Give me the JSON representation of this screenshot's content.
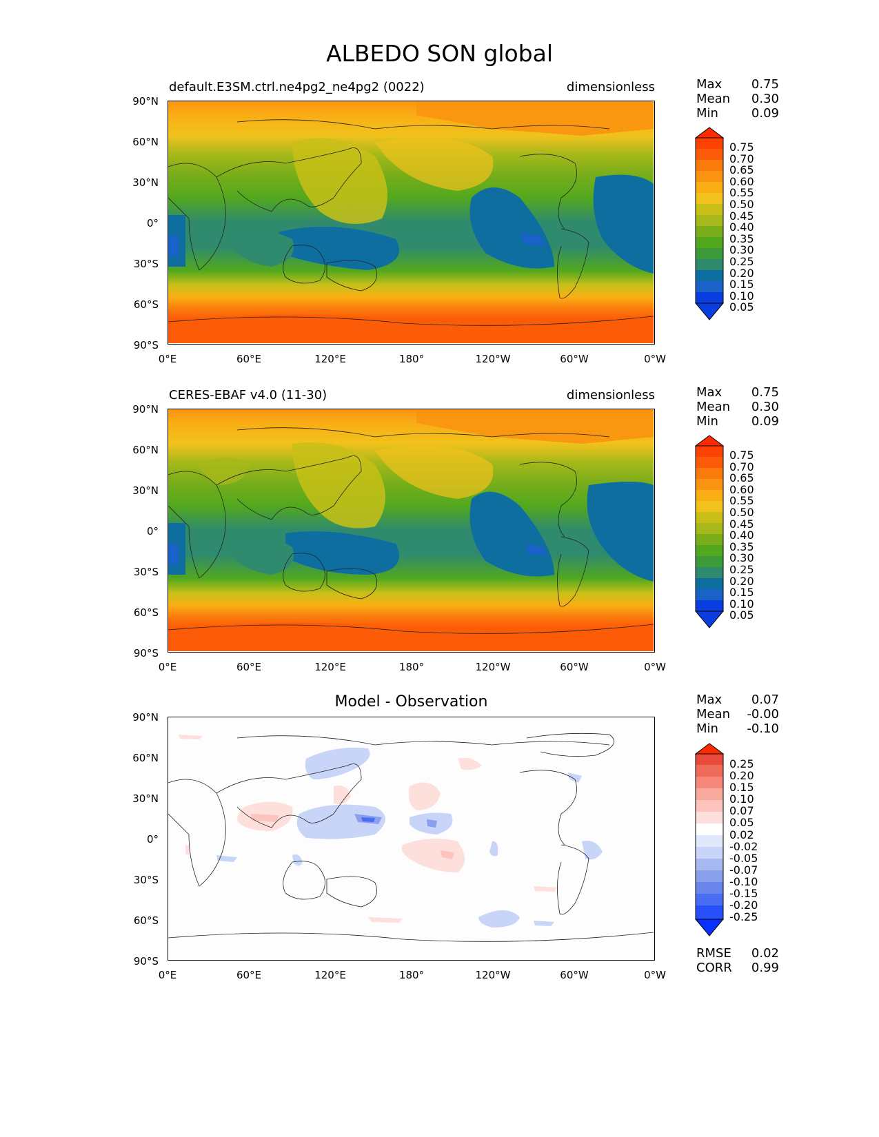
{
  "figure": {
    "title": "ALBEDO SON global"
  },
  "x_ticks": [
    "0°E",
    "60°E",
    "120°E",
    "180°",
    "120°W",
    "60°W",
    "0°W"
  ],
  "y_ticks": [
    "90°N",
    "60°N",
    "30°N",
    "0°",
    "30°S",
    "60°S",
    "90°S"
  ],
  "panels": [
    {
      "left_title": "default.E3SM.ctrl.ne4pg2_ne4pg2 (0022)",
      "center_title": "",
      "right_title": "dimensionless",
      "stats": {
        "max_label": "Max",
        "max": "0.75",
        "mean_label": "Mean",
        "mean": "0.30",
        "min_label": "Min",
        "min": "0.09"
      },
      "colorbar_ticks": [
        "0.75",
        "0.70",
        "0.65",
        "0.60",
        "0.55",
        "0.50",
        "0.45",
        "0.40",
        "0.35",
        "0.30",
        "0.25",
        "0.20",
        "0.15",
        "0.10",
        "0.05"
      ]
    },
    {
      "left_title": "CERES-EBAF v4.0 (11-30)",
      "center_title": "",
      "right_title": "dimensionless",
      "stats": {
        "max_label": "Max",
        "max": "0.75",
        "mean_label": "Mean",
        "mean": "0.30",
        "min_label": "Min",
        "min": "0.09"
      },
      "colorbar_ticks": [
        "0.75",
        "0.70",
        "0.65",
        "0.60",
        "0.55",
        "0.50",
        "0.45",
        "0.40",
        "0.35",
        "0.30",
        "0.25",
        "0.20",
        "0.15",
        "0.10",
        "0.05"
      ]
    },
    {
      "left_title": "",
      "center_title": "Model - Observation",
      "right_title": "",
      "stats": {
        "max_label": "Max",
        "max": "0.07",
        "mean_label": "Mean",
        "mean": "-0.00",
        "min_label": "Min",
        "min": "-0.10"
      },
      "colorbar_ticks": [
        "0.25",
        "0.20",
        "0.15",
        "0.10",
        "0.07",
        "0.05",
        "0.02",
        "-0.02",
        "-0.05",
        "-0.07",
        "-0.10",
        "-0.15",
        "-0.20",
        "-0.25"
      ],
      "metrics": {
        "rmse_label": "RMSE",
        "rmse": "0.02",
        "corr_label": "CORR",
        "corr": "0.99"
      }
    }
  ],
  "chart_data": [
    {
      "type": "heatmap",
      "title": "default.E3SM.ctrl.ne4pg2_ne4pg2 (0022)",
      "units": "dimensionless",
      "variable": "ALBEDO",
      "season": "SON",
      "xlim": [
        0,
        360
      ],
      "ylim": [
        -90,
        90
      ],
      "levels": [
        0.05,
        0.1,
        0.15,
        0.2,
        0.25,
        0.3,
        0.35,
        0.4,
        0.45,
        0.5,
        0.55,
        0.6,
        0.65,
        0.7,
        0.75
      ],
      "colors": [
        "#0a3ee0",
        "#1a62c8",
        "#0e6ea0",
        "#2f8a6e",
        "#3c9a3a",
        "#52a81e",
        "#7aae1a",
        "#a6b81a",
        "#c8c018",
        "#f2c21c",
        "#f9ae14",
        "#fa9410",
        "#fb7a0c",
        "#fc5c08",
        "#fd4204",
        "#ff2a00"
      ],
      "stats": {
        "max": 0.75,
        "mean": 0.3,
        "min": 0.09
      },
      "zonal_profile": [
        {
          "lat": 90,
          "value": 0.62
        },
        {
          "lat": 75,
          "value": 0.55
        },
        {
          "lat": 60,
          "value": 0.45
        },
        {
          "lat": 45,
          "value": 0.38
        },
        {
          "lat": 30,
          "value": 0.3
        },
        {
          "lat": 15,
          "value": 0.24
        },
        {
          "lat": 0,
          "value": 0.22
        },
        {
          "lat": -15,
          "value": 0.18
        },
        {
          "lat": -30,
          "value": 0.22
        },
        {
          "lat": -45,
          "value": 0.35
        },
        {
          "lat": -60,
          "value": 0.5
        },
        {
          "lat": -75,
          "value": 0.68
        },
        {
          "lat": -90,
          "value": 0.7
        }
      ]
    },
    {
      "type": "heatmap",
      "title": "CERES-EBAF v4.0 (11-30)",
      "units": "dimensionless",
      "variable": "ALBEDO",
      "season": "SON",
      "xlim": [
        0,
        360
      ],
      "ylim": [
        -90,
        90
      ],
      "levels": [
        0.05,
        0.1,
        0.15,
        0.2,
        0.25,
        0.3,
        0.35,
        0.4,
        0.45,
        0.5,
        0.55,
        0.6,
        0.65,
        0.7,
        0.75
      ],
      "stats": {
        "max": 0.75,
        "mean": 0.3,
        "min": 0.09
      },
      "zonal_profile": [
        {
          "lat": 90,
          "value": 0.62
        },
        {
          "lat": 75,
          "value": 0.55
        },
        {
          "lat": 60,
          "value": 0.46
        },
        {
          "lat": 45,
          "value": 0.4
        },
        {
          "lat": 30,
          "value": 0.3
        },
        {
          "lat": 15,
          "value": 0.24
        },
        {
          "lat": 0,
          "value": 0.22
        },
        {
          "lat": -15,
          "value": 0.18
        },
        {
          "lat": -30,
          "value": 0.21
        },
        {
          "lat": -45,
          "value": 0.34
        },
        {
          "lat": -60,
          "value": 0.5
        },
        {
          "lat": -75,
          "value": 0.68
        },
        {
          "lat": -90,
          "value": 0.7
        }
      ]
    },
    {
      "type": "heatmap",
      "title": "Model - Observation",
      "units": "dimensionless",
      "xlim": [
        0,
        360
      ],
      "ylim": [
        -90,
        90
      ],
      "levels": [
        -0.25,
        -0.2,
        -0.15,
        -0.1,
        -0.07,
        -0.05,
        -0.02,
        0.02,
        0.05,
        0.07,
        0.1,
        0.15,
        0.2,
        0.25
      ],
      "colors": [
        "#0a30ff",
        "#2850fa",
        "#4a6cf2",
        "#6a86ea",
        "#8aa0ec",
        "#a8b8f0",
        "#c8d4f8",
        "#e2e8fc",
        "#ffffff",
        "#fde0dc",
        "#fcc4bc",
        "#f9a89c",
        "#f5887a",
        "#f06a5a",
        "#ea4a3a",
        "#ff2a00"
      ],
      "stats": {
        "max": 0.07,
        "mean": -0.0,
        "min": -0.1
      },
      "rmse": 0.02,
      "corr": 0.99
    }
  ]
}
